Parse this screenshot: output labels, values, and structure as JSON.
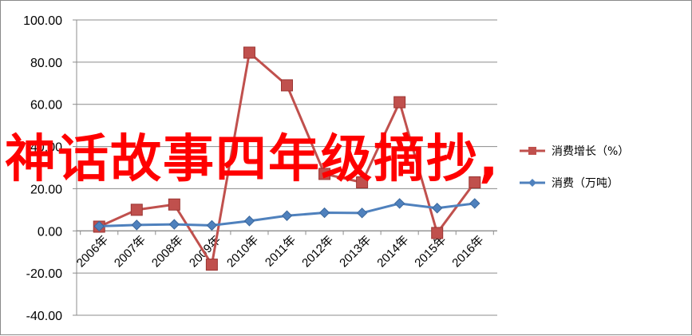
{
  "overlay_text": "神话故事四年级摘抄,",
  "chart_data": {
    "type": "line",
    "categories": [
      "2006年",
      "2007年",
      "2008年",
      "2009年",
      "2010年",
      "2011年",
      "2012年",
      "2013年",
      "2014年",
      "2015年",
      "2016年"
    ],
    "ylim": [
      -40,
      100
    ],
    "ytick_step": 20,
    "ytick_labels": [
      "100.00",
      "80.00",
      "60.00",
      "40.00",
      "20.00",
      "0.00",
      "-20.00",
      "-40.00"
    ],
    "series": [
      {
        "name": "消费增长（%）",
        "color": "#c0504d",
        "marker": "square",
        "values": [
          2,
          10,
          12.5,
          -16,
          84.5,
          69,
          27,
          23,
          61,
          -1,
          23
        ]
      },
      {
        "name": "消费（万吨）",
        "color": "#4f81bd",
        "marker": "diamond",
        "values": [
          2.2,
          2.8,
          3.1,
          2.6,
          4.7,
          7.2,
          8.6,
          8.5,
          13,
          10.8,
          13
        ]
      }
    ],
    "legend_position": "right",
    "grid": true
  }
}
